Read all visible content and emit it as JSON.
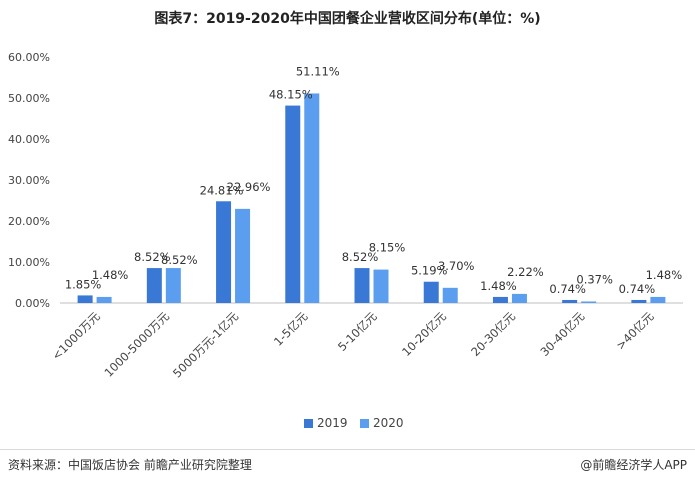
{
  "chart_data": {
    "type": "bar",
    "title": "图表7：2019-2020年中国团餐企业营收区间分布(单位：%)",
    "categories": [
      "<1000万元",
      "1000-5000万元",
      "5000万元-1亿元",
      "1-5亿元",
      "5-10亿元",
      "10-20亿元",
      "20-30亿元",
      "30-40亿元",
      ">40亿元"
    ],
    "series": [
      {
        "name": "2019",
        "color": "#3a78d6",
        "values": [
          1.85,
          8.52,
          24.81,
          48.15,
          8.52,
          5.19,
          1.48,
          0.74,
          0.74
        ],
        "labels": [
          "1.85%",
          "8.52%",
          "24.81%",
          "48.15%",
          "8.52%",
          "5.19%",
          "1.48%",
          "0.74%",
          "0.74%"
        ]
      },
      {
        "name": "2020",
        "color": "#5b9ef0",
        "values": [
          1.48,
          8.52,
          22.96,
          51.11,
          8.15,
          3.7,
          2.22,
          0.37,
          1.48
        ],
        "labels": [
          "1.48%",
          "8.52%",
          "22.96%",
          "51.11%",
          "8.15%",
          "3.70%",
          "2.22%",
          "0.37%",
          "1.48%"
        ]
      }
    ],
    "yticks": [
      "0.00%",
      "10.00%",
      "20.00%",
      "30.00%",
      "40.00%",
      "50.00%",
      "60.00%"
    ],
    "ylim": [
      0,
      60
    ],
    "xlabel": "",
    "ylabel": "",
    "grid": false,
    "legend": "bottom"
  },
  "footer": {
    "source": "资料来源：中国饭店协会 前瞻产业研究院整理",
    "credit": "@前瞻经济学人APP"
  }
}
